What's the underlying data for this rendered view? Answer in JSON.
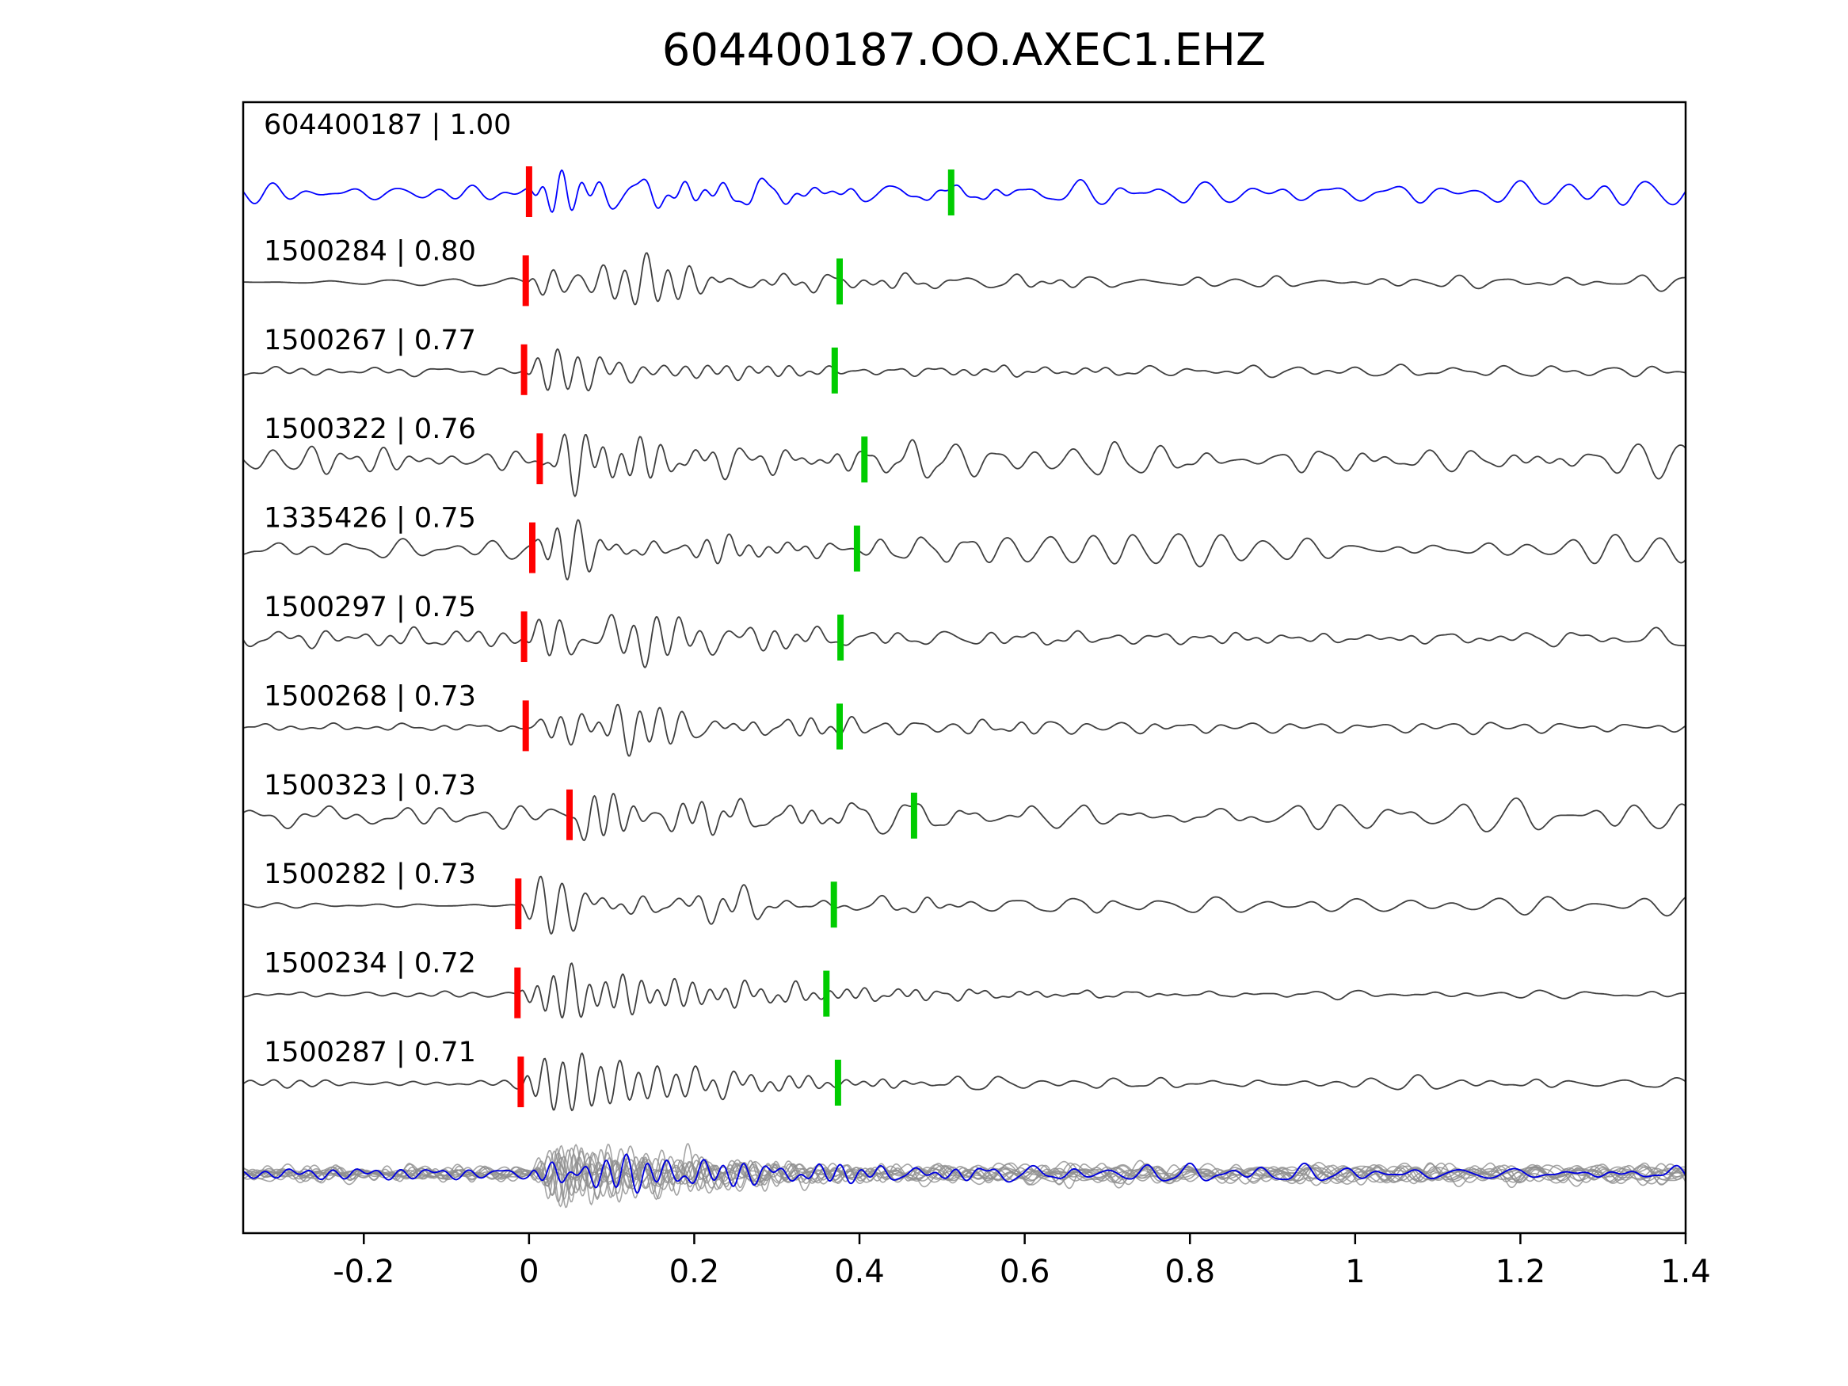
{
  "title": "604400187.OO.AXEC1.EHZ",
  "colors": {
    "template_trace": "#0000ff",
    "detection_trace": "#3f3f3f",
    "stack_gray": "#8f8f8f",
    "stack_blue": "#0000dd",
    "pick_red": "#ff0000",
    "pick_green": "#00cc00",
    "axis": "#000000",
    "background": "#ffffff"
  },
  "x_axis": {
    "min": -0.346,
    "max": 1.4,
    "ticks": [
      {
        "v": -0.2,
        "label": "-0.2"
      },
      {
        "v": 0,
        "label": "0"
      },
      {
        "v": 0.2,
        "label": "0.2"
      },
      {
        "v": 0.4,
        "label": "0.4"
      },
      {
        "v": 0.6,
        "label": "0.6"
      },
      {
        "v": 0.8,
        "label": "0.8"
      },
      {
        "v": 1,
        "label": "1"
      },
      {
        "v": 1.2,
        "label": "1.2"
      },
      {
        "v": 1.4,
        "label": "1.4"
      }
    ]
  },
  "chart_data": {
    "type": "line",
    "title": "604400187.OO.AXEC1.EHZ",
    "xlabel": "",
    "ylabel": "",
    "xlim": [
      -0.346,
      1.4
    ],
    "legend": "none",
    "grid": false,
    "description": "Template-matching seismogram panel: template trace (blue) with detected event waveforms below, red P-pick and green S-pick markers per trace, and an aligned overlay stack of all detections (gray) with the template (blue) at the bottom.",
    "series": [
      {
        "id": "604400187",
        "score": "1.00",
        "display": "604400187 | 1.00",
        "role": "template",
        "red_pick": 0.0,
        "green_pick": 0.511,
        "seed": 11,
        "pre": 11,
        "burst": 34,
        "coda": 20,
        "tail": 15
      },
      {
        "id": "1500284",
        "score": "0.80",
        "display": "1500284 | 0.80",
        "role": "detection",
        "red_pick": -0.004,
        "green_pick": 0.376,
        "seed": 22,
        "pre": 6,
        "burst": 52,
        "coda": 15,
        "tail": 9
      },
      {
        "id": "1500267",
        "score": "0.77",
        "display": "1500267 | 0.77",
        "role": "detection",
        "red_pick": -0.006,
        "green_pick": 0.37,
        "seed": 33,
        "pre": 7,
        "burst": 52,
        "coda": 11,
        "tail": 7
      },
      {
        "id": "1500322",
        "score": "0.76",
        "display": "1500322 | 0.76",
        "role": "detection",
        "red_pick": 0.013,
        "green_pick": 0.406,
        "seed": 44,
        "pre": 17,
        "burst": 48,
        "coda": 24,
        "tail": 19
      },
      {
        "id": "1335426",
        "score": "0.75",
        "display": "1335426 | 0.75",
        "role": "detection",
        "red_pick": 0.004,
        "green_pick": 0.397,
        "seed": 55,
        "pre": 15,
        "burst": 46,
        "coda": 24,
        "tail": 19
      },
      {
        "id": "1500297",
        "score": "0.75",
        "display": "1500297 | 0.75",
        "role": "detection",
        "red_pick": -0.006,
        "green_pick": 0.377,
        "seed": 66,
        "pre": 15,
        "burst": 50,
        "coda": 18,
        "tail": 12
      },
      {
        "id": "1500268",
        "score": "0.73",
        "display": "1500268 | 0.73",
        "role": "detection",
        "red_pick": -0.004,
        "green_pick": 0.376,
        "seed": 77,
        "pre": 7,
        "burst": 54,
        "coda": 15,
        "tail": 7
      },
      {
        "id": "1500323",
        "score": "0.73",
        "display": "1500323 | 0.73",
        "role": "detection",
        "red_pick": 0.049,
        "green_pick": 0.466,
        "seed": 88,
        "pre": 17,
        "burst": 44,
        "coda": 24,
        "tail": 19
      },
      {
        "id": "1500282",
        "score": "0.73",
        "display": "1500282 | 0.73",
        "role": "detection",
        "red_pick": -0.013,
        "green_pick": 0.369,
        "seed": 99,
        "pre": 3,
        "burst": 50,
        "coda": 17,
        "tail": 10
      },
      {
        "id": "1500234",
        "score": "0.72",
        "display": "1500234 | 0.72",
        "role": "detection",
        "red_pick": -0.014,
        "green_pick": 0.36,
        "seed": 111,
        "pre": 4,
        "burst": 48,
        "coda": 11,
        "tail": 5
      },
      {
        "id": "1500287",
        "score": "0.71",
        "display": "1500287 | 0.71",
        "role": "detection",
        "red_pick": -0.01,
        "green_pick": 0.374,
        "seed": 122,
        "pre": 7,
        "burst": 46,
        "coda": 13,
        "tail": 8
      }
    ],
    "stack": {
      "gray_count": 12,
      "gray_seed_base": 300,
      "blue_seed": 777,
      "pre": 9,
      "burst": 44,
      "coda": 15,
      "tail": 11
    }
  }
}
